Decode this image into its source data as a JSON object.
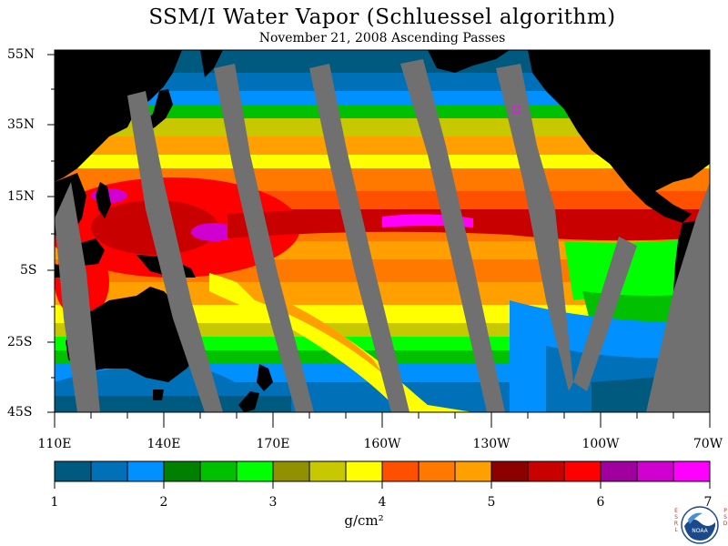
{
  "title": "SSM/I Water Vapor (Schluessel algorithm)",
  "subtitle": "November 21, 2008  Ascending Passes",
  "lat_labels": [
    "55N",
    "35N",
    "15N",
    "5S",
    "25S",
    "45S"
  ],
  "lon_labels": [
    "110E",
    "140E",
    "170E",
    "160W",
    "130W",
    "100W",
    "70W"
  ],
  "colorbar": {
    "labels": [
      "1",
      "2",
      "3",
      "4",
      "5",
      "6",
      "7"
    ],
    "unit": "g/cm²",
    "colors": [
      "#005a80",
      "#0070b8",
      "#0090ff",
      "#008000",
      "#00c000",
      "#00ff00",
      "#909000",
      "#c8c800",
      "#ffff00",
      "#ff5000",
      "#ff7800",
      "#ffa000",
      "#8c0000",
      "#c80000",
      "#ff0000",
      "#a000a0",
      "#d000d0",
      "#ff00ff"
    ]
  },
  "logo": {
    "left_text": "ESRL",
    "right_text": "PSD",
    "center_text": "NOAA"
  },
  "colors": {
    "land": "#000000",
    "nodata": "#707070",
    "ocean_low": "#005a80"
  }
}
